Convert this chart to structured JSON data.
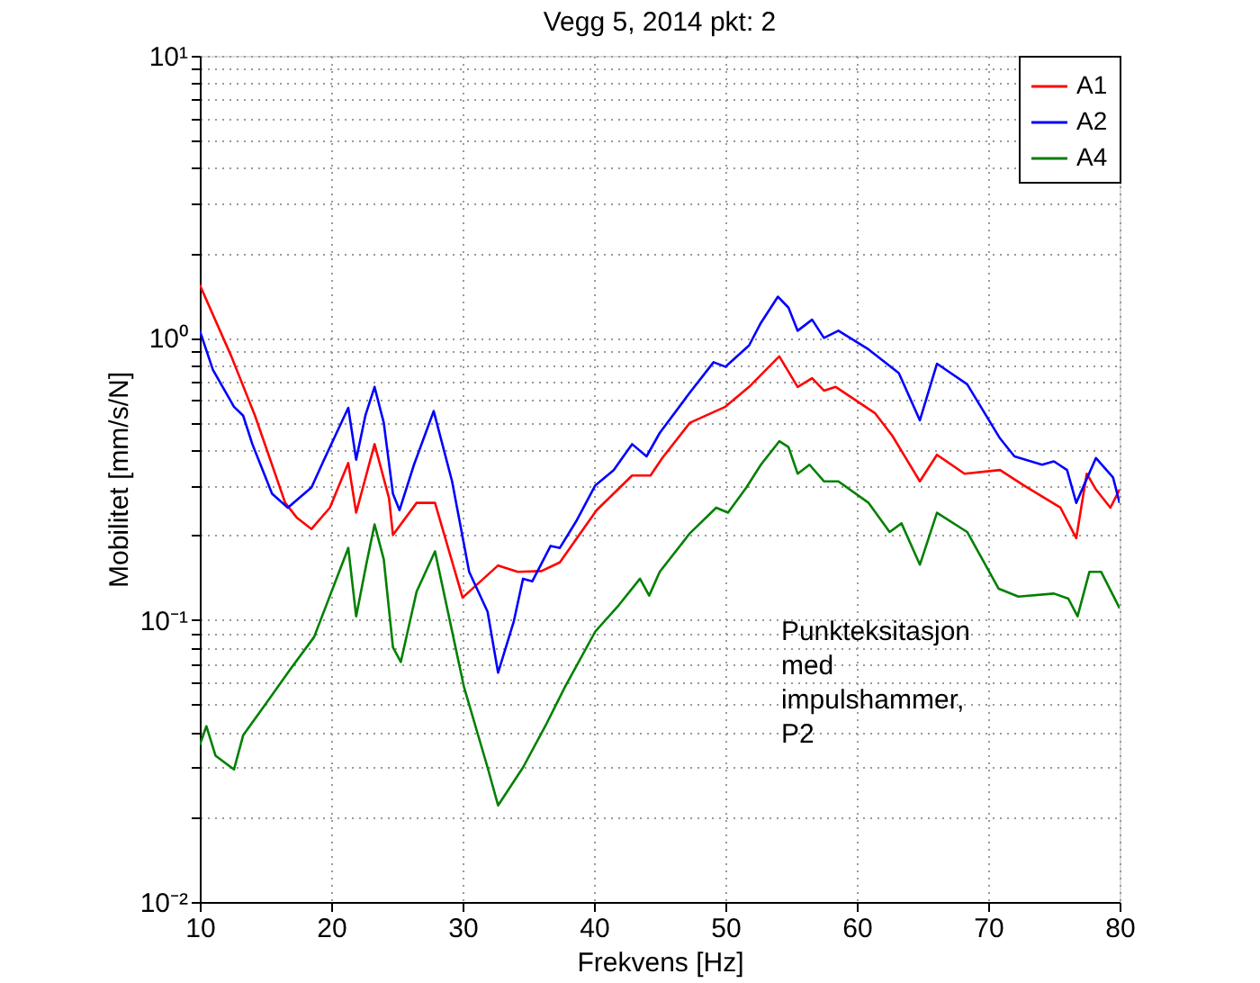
{
  "chart_data": {
    "type": "line",
    "title": "Vegg 5, 2014 pkt: 2",
    "xlabel": "Frekvens [Hz]",
    "ylabel": "Mobilitet [mm/s/N]",
    "xlim": [
      10,
      80
    ],
    "xticks": [
      10,
      20,
      30,
      40,
      50,
      60,
      70,
      80
    ],
    "ylim": [
      0.01,
      10
    ],
    "log": true,
    "grid": true,
    "legend": "top right",
    "line_style": "solid",
    "yticks": [
      {
        "value": 0.01,
        "label": "10⁻²"
      },
      {
        "value": 0.02,
        "label": null
      },
      {
        "value": 0.03,
        "label": null
      },
      {
        "value": 0.04,
        "label": null
      },
      {
        "value": 0.05,
        "label": null
      },
      {
        "value": 0.06,
        "label": null
      },
      {
        "value": 0.07,
        "label": null
      },
      {
        "value": 0.08,
        "label": null
      },
      {
        "value": 0.09,
        "label": null
      },
      {
        "value": 0.1,
        "label": "10⁻¹"
      },
      {
        "value": 0.2,
        "label": null
      },
      {
        "value": 0.3,
        "label": null
      },
      {
        "value": 0.4,
        "label": null
      },
      {
        "value": 0.5,
        "label": null
      },
      {
        "value": 0.6,
        "label": null
      },
      {
        "value": 0.7,
        "label": null
      },
      {
        "value": 0.8,
        "label": null
      },
      {
        "value": 0.9,
        "label": null
      },
      {
        "value": 1,
        "label": "10⁰"
      },
      {
        "value": 2,
        "label": null
      },
      {
        "value": 3,
        "label": null
      },
      {
        "value": 4,
        "label": null
      },
      {
        "value": 5,
        "label": null
      },
      {
        "value": 6,
        "label": null
      },
      {
        "value": 7,
        "label": null
      },
      {
        "value": 8,
        "label": null
      },
      {
        "value": 9,
        "label": null
      },
      {
        "value": 10,
        "label": "10¹"
      }
    ],
    "annotations": [
      "Punkteksitasjon\nmed\nimpulshammer,\nP2"
    ],
    "series": [
      {
        "name": "A1",
        "color": "#ff0000",
        "x": [
          10,
          12.4,
          14.2,
          16.5,
          17.4,
          18.5,
          19.9,
          21.3,
          21.9,
          23.3,
          24.4,
          24.7,
          26.5,
          27.9,
          30,
          32.7,
          34.2,
          36,
          37.4,
          40.2,
          42.9,
          44.3,
          45.2,
          47.3,
          50,
          51.8,
          54.1,
          55.5,
          56.6,
          57.5,
          58.4,
          61.4,
          62.7,
          64.8,
          66.1,
          68.2,
          70.9,
          72.7,
          75.5,
          76.7,
          77.5,
          78.2,
          79.3,
          80
        ],
        "values": [
          1.54,
          0.86,
          0.53,
          0.26,
          0.23,
          0.21,
          0.25,
          0.36,
          0.24,
          0.42,
          0.27,
          0.2,
          0.26,
          0.26,
          0.12,
          0.156,
          0.148,
          0.149,
          0.16,
          0.245,
          0.325,
          0.325,
          0.375,
          0.5,
          0.57,
          0.67,
          0.86,
          0.67,
          0.72,
          0.65,
          0.67,
          0.54,
          0.45,
          0.31,
          0.385,
          0.33,
          0.34,
          0.3,
          0.25,
          0.195,
          0.33,
          0.29,
          0.25,
          0.29
        ]
      },
      {
        "name": "A2",
        "color": "#0000ff",
        "x": [
          10,
          11,
          12.6,
          13.3,
          14,
          15.5,
          16.7,
          18.5,
          19.4,
          21.3,
          21.9,
          22.6,
          23.3,
          24,
          24.7,
          25.2,
          26.3,
          27.8,
          29.2,
          30.5,
          31.9,
          32.7,
          33.9,
          34.6,
          35.3,
          36.7,
          37.4,
          38.7,
          40.1,
          41.5,
          42.9,
          44,
          45,
          47.3,
          49.1,
          50,
          51.8,
          52.7,
          54,
          54.8,
          55.5,
          56.6,
          57.5,
          58.6,
          60.9,
          63.2,
          64.8,
          66.1,
          68.4,
          70.9,
          72,
          74.1,
          75,
          76,
          76.7,
          78.2,
          79.5,
          80
        ],
        "values": [
          1.06,
          0.77,
          0.57,
          0.53,
          0.42,
          0.28,
          0.25,
          0.295,
          0.365,
          0.565,
          0.37,
          0.53,
          0.67,
          0.5,
          0.28,
          0.245,
          0.355,
          0.55,
          0.31,
          0.148,
          0.107,
          0.065,
          0.099,
          0.14,
          0.137,
          0.183,
          0.18,
          0.226,
          0.3,
          0.34,
          0.42,
          0.38,
          0.46,
          0.64,
          0.82,
          0.79,
          0.94,
          1.13,
          1.4,
          1.28,
          1.06,
          1.16,
          1.0,
          1.06,
          0.91,
          0.75,
          0.51,
          0.81,
          0.685,
          0.44,
          0.38,
          0.355,
          0.365,
          0.34,
          0.26,
          0.375,
          0.32,
          0.26
        ]
      },
      {
        "name": "A4",
        "color": "#008000",
        "x": [
          10,
          10.5,
          11.2,
          12.6,
          13.3,
          15.1,
          16.9,
          18.7,
          21.3,
          21.9,
          22.7,
          23.3,
          24,
          24.7,
          25.3,
          26.5,
          27.9,
          30.1,
          31.9,
          32.7,
          34.6,
          36.4,
          37.8,
          40.1,
          41.9,
          43.5,
          44.2,
          45,
          47.3,
          49.3,
          50.2,
          51.6,
          52.7,
          54.1,
          54.8,
          55.5,
          56.4,
          57.5,
          58.6,
          60.9,
          62.5,
          63.4,
          64.8,
          66.1,
          68.4,
          70.8,
          72.3,
          75,
          76.1,
          76.8,
          77.7,
          78.6,
          80
        ],
        "values": [
          0.036,
          0.042,
          0.033,
          0.0295,
          0.039,
          0.051,
          0.067,
          0.087,
          0.18,
          0.103,
          0.16,
          0.218,
          0.164,
          0.08,
          0.071,
          0.126,
          0.175,
          0.058,
          0.03,
          0.022,
          0.03,
          0.043,
          0.058,
          0.091,
          0.113,
          0.14,
          0.122,
          0.148,
          0.203,
          0.25,
          0.24,
          0.295,
          0.355,
          0.43,
          0.41,
          0.33,
          0.355,
          0.31,
          0.31,
          0.26,
          0.205,
          0.22,
          0.157,
          0.24,
          0.205,
          0.129,
          0.121,
          0.124,
          0.119,
          0.103,
          0.148,
          0.148,
          0.11
        ]
      }
    ]
  }
}
